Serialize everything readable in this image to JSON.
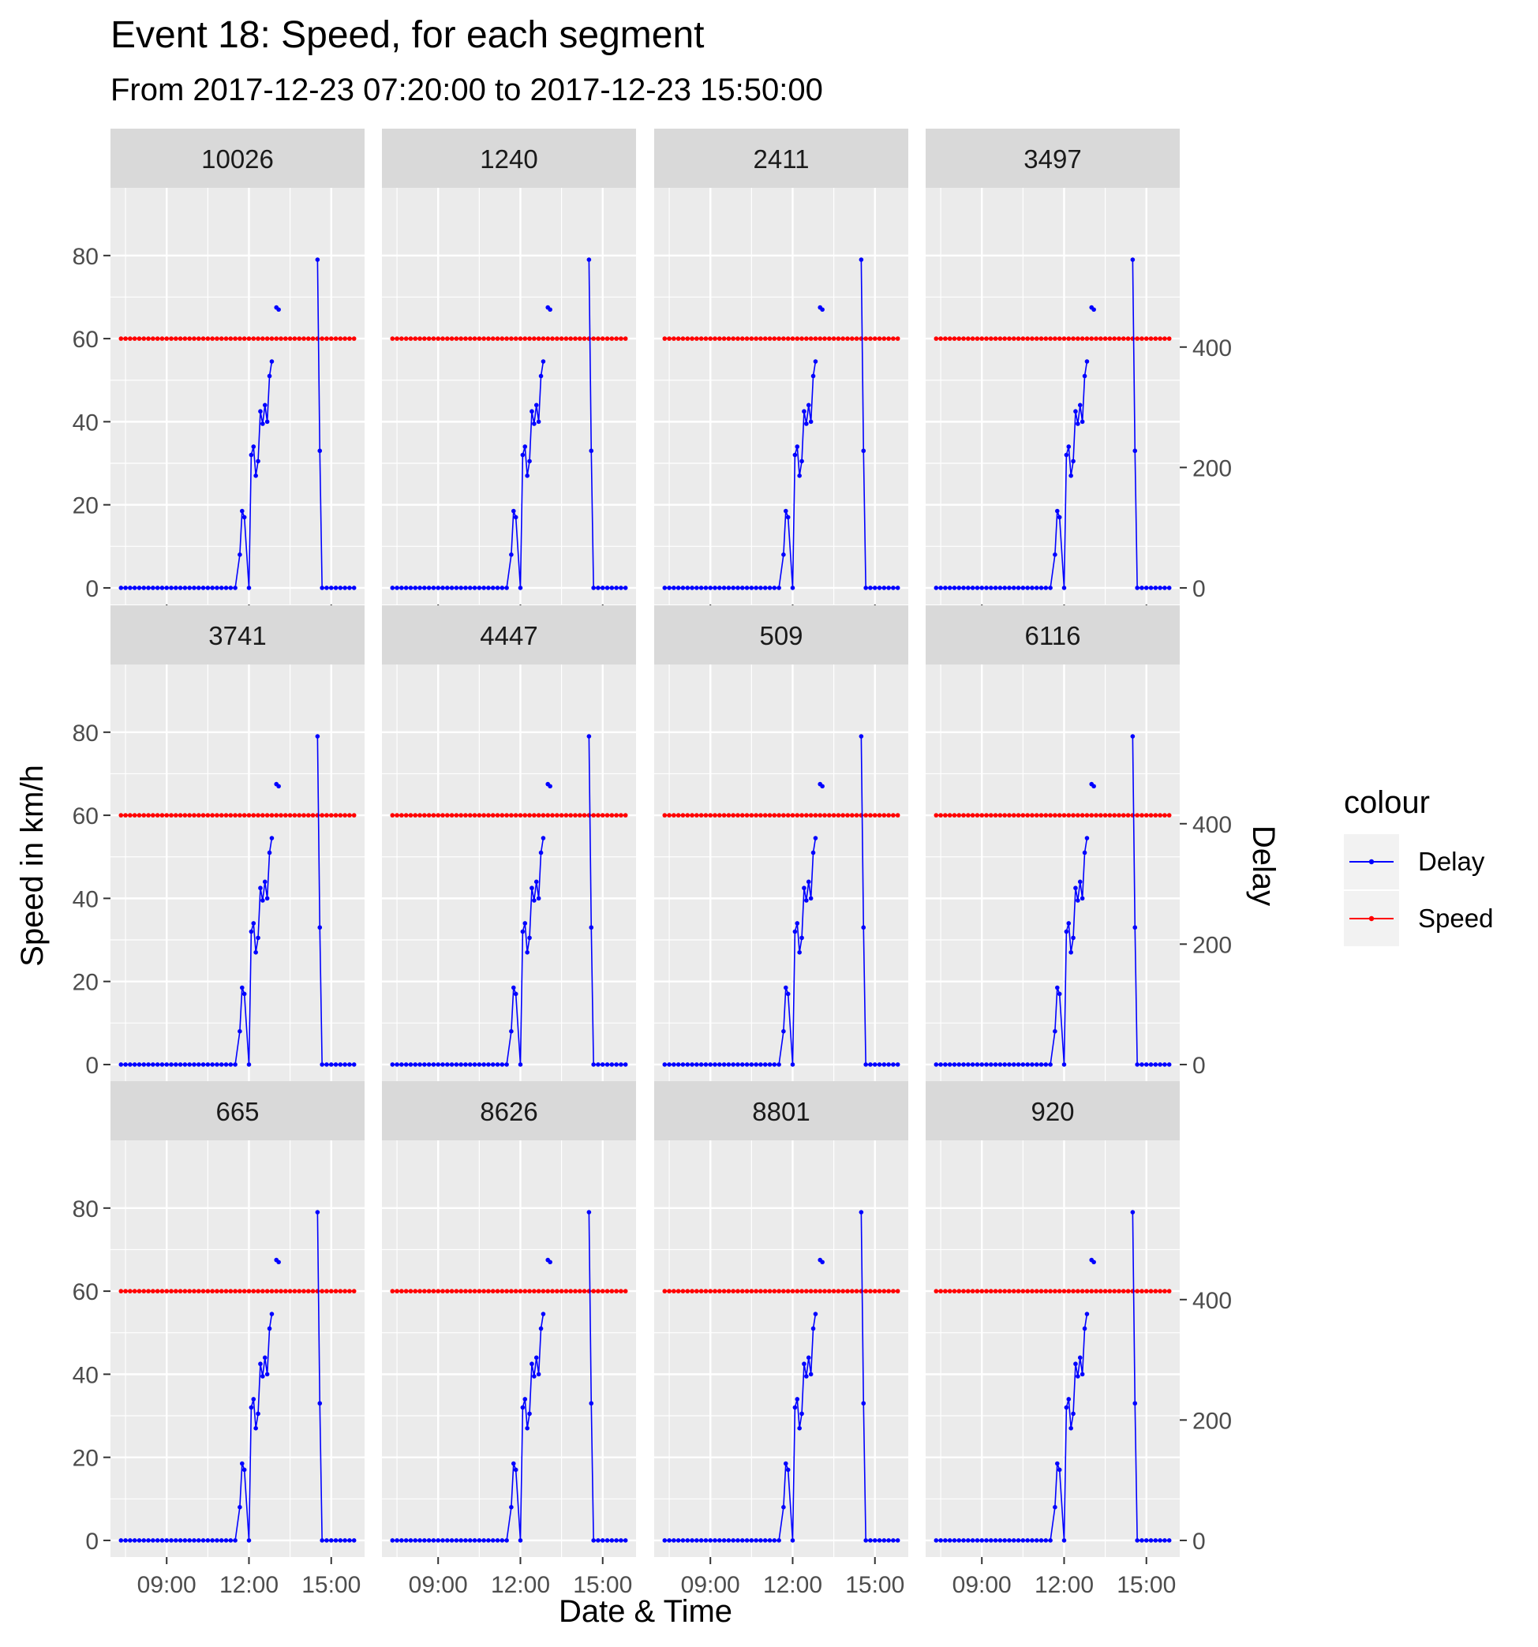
{
  "chart_data": {
    "type": "line",
    "title": "Event 18: Speed, for each segment",
    "subtitle": "From 2017-12-23 07:20:00 to 2017-12-23 15:50:00",
    "xlabel": "Date & Time",
    "ylabel": "Speed in km/h",
    "y2label": "Delay",
    "xlim": [
      "2017-12-23 07:20:00",
      "2017-12-23 15:50:00"
    ],
    "xticks": [
      "09:00",
      "12:00",
      "15:00"
    ],
    "ylim": [
      0,
      80
    ],
    "yticks": [
      0,
      20,
      40,
      60,
      80
    ],
    "y2ticks": [
      0,
      200,
      400
    ],
    "y2_scale_note": "secondary axis: Delay = Speed * 6.9",
    "grid": true,
    "legend": {
      "title": "colour",
      "position": "right",
      "entries": [
        {
          "label": "Delay",
          "color": "#0000ff"
        },
        {
          "label": "Speed",
          "color": "#ff0000"
        }
      ]
    },
    "facets": [
      "10026",
      "1240",
      "2411",
      "3497",
      "3741",
      "4447",
      "509",
      "6116",
      "665",
      "8626",
      "8801",
      "920"
    ],
    "series": [
      {
        "name": "Speed",
        "color": "#ff0000",
        "note": "constant 60 km/h from 07:20 to 15:50 at 10-minute intervals, identical in all facets",
        "x_start": "07:20",
        "x_end": "15:50",
        "interval_minutes": 10,
        "value": 60
      },
      {
        "name": "Delay",
        "color": "#0000ff",
        "note": "identical in all facets; values shown on speed scale (y); zero elsewhere from 07:20 to 15:50",
        "points": [
          {
            "x": "07:20",
            "y": 0
          },
          {
            "x": "11:30",
            "y": 0
          },
          {
            "x": "11:40",
            "y": 8
          },
          {
            "x": "11:45",
            "y": 18.5
          },
          {
            "x": "11:50",
            "y": 17
          },
          {
            "x": "12:00",
            "y": 0
          },
          {
            "x": "12:05",
            "y": 32
          },
          {
            "x": "12:10",
            "y": 34
          },
          {
            "x": "12:15",
            "y": 27
          },
          {
            "x": "12:20",
            "y": 30.5
          },
          {
            "x": "12:25",
            "y": 42.5
          },
          {
            "x": "12:30",
            "y": 39.5
          },
          {
            "x": "12:35",
            "y": 44
          },
          {
            "x": "12:40",
            "y": 40
          },
          {
            "x": "12:45",
            "y": 51
          },
          {
            "x": "12:50",
            "y": 54.5
          },
          {
            "x": "12:55",
            "y": null
          },
          {
            "x": "13:00",
            "y": 67.5
          },
          {
            "x": "13:05",
            "y": 67
          },
          {
            "x": "13:10",
            "y": null
          },
          {
            "x": "14:30",
            "y": 79
          },
          {
            "x": "14:35",
            "y": 33
          },
          {
            "x": "14:40",
            "y": 0
          },
          {
            "x": "15:50",
            "y": 0
          }
        ]
      }
    ]
  }
}
